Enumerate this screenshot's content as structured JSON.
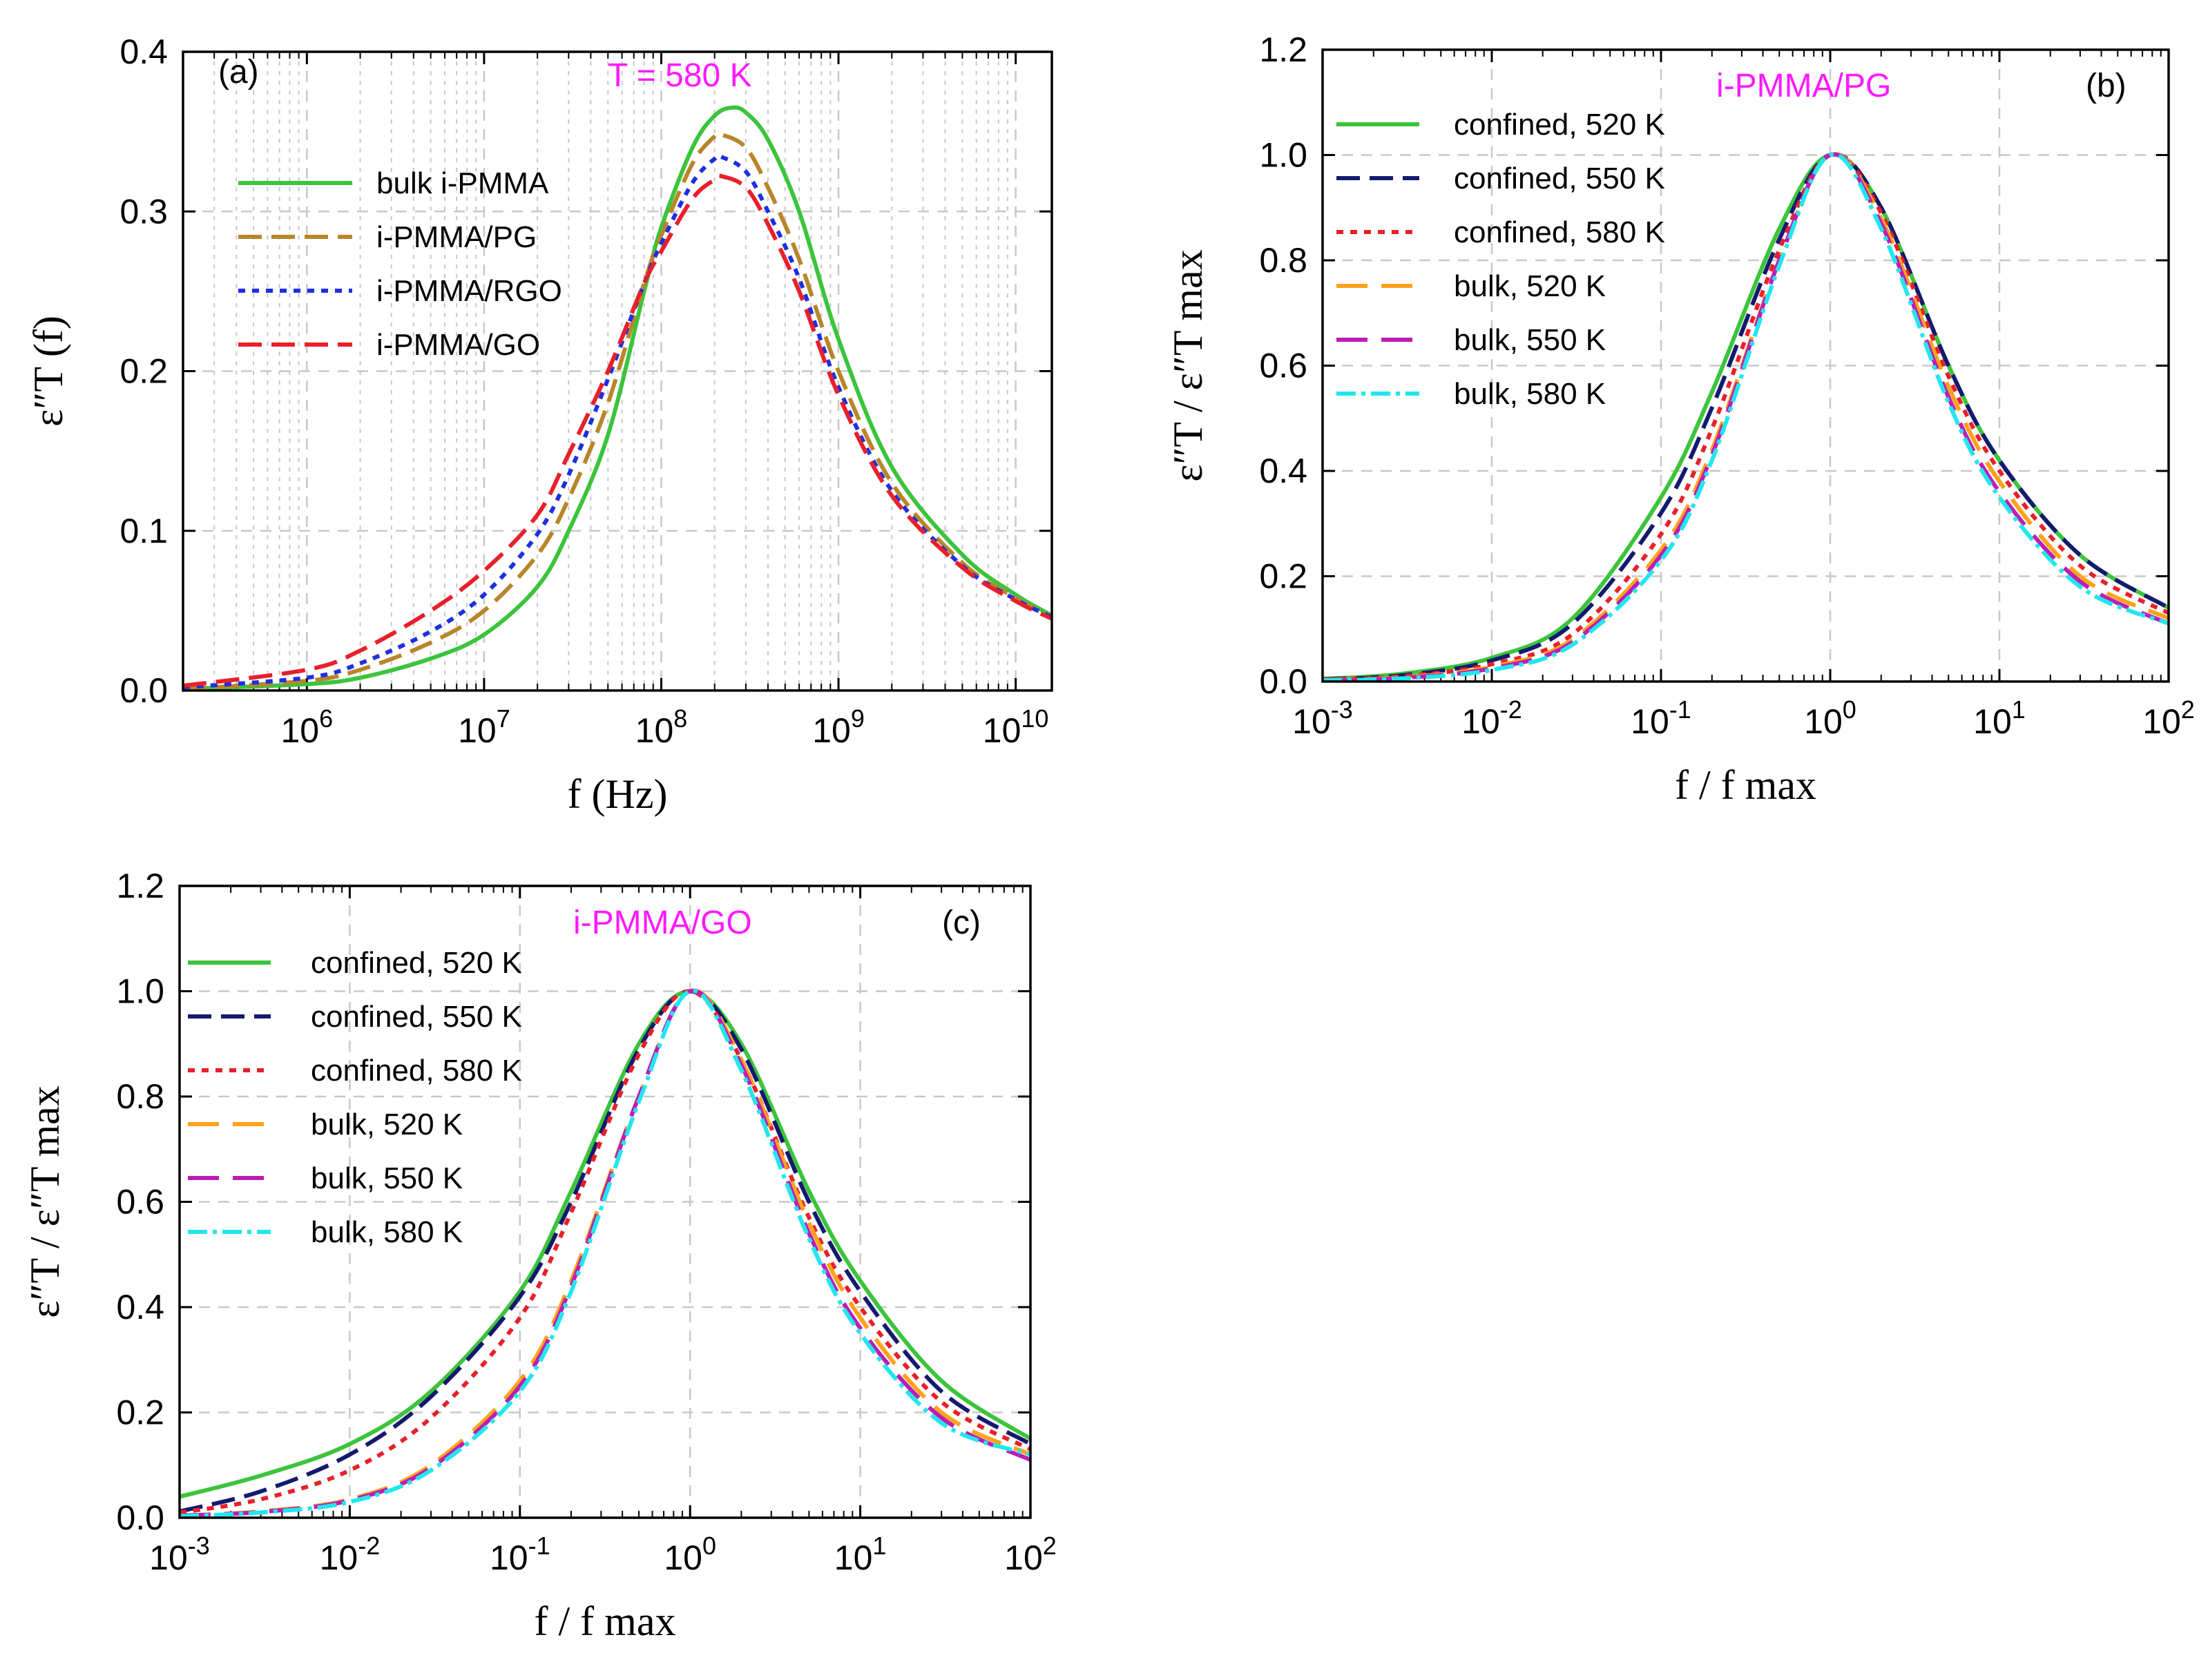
{
  "colors": {
    "green": "#3cc43c",
    "gold": "#b8862a",
    "blue": "#1f2fe0",
    "red": "#e8202a",
    "navy": "#141a6e",
    "orange": "#ffa21a",
    "purple": "#bb1eb4",
    "cyan": "#22e6ee",
    "magenta": "#ff1aff",
    "grid": "#c8c8c8"
  },
  "chart_data": [
    {
      "id": "a",
      "type": "line",
      "panel_label": "(a)",
      "annotation": "T = 580 K",
      "xlabel": "f (Hz)",
      "ylabel": "ε″T (f)",
      "xscale": "log",
      "xlim": [
        200000,
        16000000000
      ],
      "ylim": [
        0,
        0.4
      ],
      "xticks": [
        1000000,
        10000000,
        100000000,
        1000000000,
        10000000000
      ],
      "xtick_labels": [
        "10^6",
        "10^7",
        "10^8",
        "10^9",
        "10^10"
      ],
      "yticks": [
        0,
        0.1,
        0.2,
        0.3,
        0.4
      ],
      "ytick_labels": [
        "0.0",
        "0.1",
        "0.2",
        "0.3",
        "0.4"
      ],
      "grid": true,
      "legend_position": "upper-left",
      "series": [
        {
          "name": "bulk i-PMMA",
          "color": "green",
          "dash": "solid",
          "x": [
            200000,
            1000000,
            2000000,
            5000000,
            10000000,
            20000000,
            30000000,
            50000000,
            80000000,
            100000000,
            150000000,
            200000000,
            250000000,
            300000000,
            400000000,
            600000000,
            1000000000,
            2000000000,
            5000000000,
            10000000000,
            16000000000
          ],
          "y": [
            0.001,
            0.004,
            0.008,
            0.02,
            0.035,
            0.065,
            0.1,
            0.16,
            0.25,
            0.29,
            0.34,
            0.36,
            0.365,
            0.362,
            0.345,
            0.3,
            0.22,
            0.14,
            0.085,
            0.06,
            0.047
          ]
        },
        {
          "name": "i-PMMA/PG",
          "color": "gold",
          "dash": "dashed",
          "x": [
            200000,
            1000000,
            2000000,
            5000000,
            10000000,
            20000000,
            30000000,
            50000000,
            80000000,
            100000000,
            150000000,
            200000000,
            220000000,
            300000000,
            400000000,
            600000000,
            1000000000,
            2000000000,
            5000000000,
            10000000000,
            16000000000
          ],
          "y": [
            0.001,
            0.006,
            0.013,
            0.03,
            0.05,
            0.085,
            0.12,
            0.18,
            0.255,
            0.285,
            0.33,
            0.347,
            0.348,
            0.34,
            0.315,
            0.27,
            0.2,
            0.13,
            0.08,
            0.058,
            0.046
          ]
        },
        {
          "name": "i-PMMA/RGO",
          "color": "blue",
          "dash": "dotted",
          "x": [
            200000,
            1000000,
            2000000,
            5000000,
            10000000,
            20000000,
            30000000,
            50000000,
            80000000,
            100000000,
            150000000,
            200000000,
            220000000,
            300000000,
            400000000,
            600000000,
            1000000000,
            2000000000,
            5000000000,
            10000000000,
            16000000000
          ],
          "y": [
            0.002,
            0.008,
            0.017,
            0.037,
            0.06,
            0.098,
            0.135,
            0.195,
            0.255,
            0.28,
            0.318,
            0.333,
            0.334,
            0.325,
            0.3,
            0.258,
            0.19,
            0.125,
            0.078,
            0.057,
            0.046
          ]
        },
        {
          "name": "i-PMMA/GO",
          "color": "red",
          "dash": "dashed",
          "x": [
            200000,
            1000000,
            2000000,
            5000000,
            10000000,
            20000000,
            30000000,
            50000000,
            80000000,
            100000000,
            150000000,
            200000000,
            220000000,
            300000000,
            400000000,
            600000000,
            1000000000,
            2000000000,
            5000000000,
            10000000000,
            16000000000
          ],
          "y": [
            0.003,
            0.013,
            0.025,
            0.05,
            0.075,
            0.11,
            0.148,
            0.2,
            0.255,
            0.275,
            0.308,
            0.32,
            0.322,
            0.315,
            0.292,
            0.25,
            0.185,
            0.122,
            0.077,
            0.056,
            0.045
          ]
        }
      ]
    },
    {
      "id": "b",
      "type": "line",
      "panel_label": "(b)",
      "annotation": "i-PMMA/PG",
      "xlabel": "f / f max",
      "ylabel": "ε″T / ε″T max",
      "xscale": "log",
      "xlim": [
        0.001,
        100
      ],
      "ylim": [
        0,
        1.2
      ],
      "xticks": [
        0.001,
        0.01,
        0.1,
        1,
        10,
        100
      ],
      "xtick_labels": [
        "10^-3",
        "10^-2",
        "10^-1",
        "10^0",
        "10^1",
        "10^2"
      ],
      "yticks": [
        0,
        0.2,
        0.4,
        0.6,
        0.8,
        1.0,
        1.2
      ],
      "ytick_labels": [
        "0.0",
        "0.2",
        "0.4",
        "0.6",
        "0.8",
        "1.0",
        "1.2"
      ],
      "grid": true,
      "legend_position": "upper-left",
      "series": [
        {
          "name": "confined, 520 K",
          "color": "green",
          "dash": "solid",
          "x": [
            0.001,
            0.003,
            0.01,
            0.03,
            0.1,
            0.2,
            0.5,
            1,
            2,
            5,
            10,
            30,
            100
          ],
          "y": [
            0.005,
            0.015,
            0.045,
            0.12,
            0.35,
            0.55,
            0.86,
            1.0,
            0.9,
            0.6,
            0.42,
            0.24,
            0.14
          ]
        },
        {
          "name": "confined, 550 K",
          "color": "navy",
          "dash": "dashed",
          "x": [
            0.001,
            0.003,
            0.01,
            0.03,
            0.1,
            0.2,
            0.5,
            1,
            2,
            5,
            10,
            30,
            100
          ],
          "y": [
            0.004,
            0.012,
            0.04,
            0.11,
            0.32,
            0.52,
            0.84,
            1.0,
            0.9,
            0.6,
            0.42,
            0.24,
            0.14
          ]
        },
        {
          "name": "confined, 580 K",
          "color": "red",
          "dash": "dotted",
          "x": [
            0.001,
            0.003,
            0.01,
            0.03,
            0.1,
            0.2,
            0.5,
            1,
            2,
            5,
            10,
            30,
            100
          ],
          "y": [
            0.003,
            0.01,
            0.033,
            0.09,
            0.28,
            0.48,
            0.82,
            1.0,
            0.89,
            0.58,
            0.4,
            0.22,
            0.13
          ]
        },
        {
          "name": "bulk, 520 K",
          "color": "orange",
          "dash": "longdash",
          "x": [
            0.001,
            0.003,
            0.01,
            0.03,
            0.1,
            0.2,
            0.5,
            1,
            2,
            5,
            10,
            30,
            100
          ],
          "y": [
            0.003,
            0.008,
            0.028,
            0.08,
            0.25,
            0.44,
            0.8,
            1.0,
            0.88,
            0.56,
            0.38,
            0.2,
            0.12
          ]
        },
        {
          "name": "bulk, 550 K",
          "color": "purple",
          "dash": "longdash",
          "x": [
            0.001,
            0.003,
            0.01,
            0.03,
            0.1,
            0.2,
            0.5,
            1,
            2,
            5,
            10,
            30,
            100
          ],
          "y": [
            0.002,
            0.007,
            0.025,
            0.075,
            0.24,
            0.43,
            0.8,
            1.0,
            0.87,
            0.54,
            0.36,
            0.19,
            0.11
          ]
        },
        {
          "name": "bulk, 580 K",
          "color": "cyan",
          "dash": "dashdot",
          "x": [
            0.001,
            0.003,
            0.01,
            0.03,
            0.1,
            0.2,
            0.5,
            1,
            2,
            5,
            10,
            30,
            100
          ],
          "y": [
            0.002,
            0.006,
            0.022,
            0.07,
            0.23,
            0.42,
            0.79,
            1.0,
            0.86,
            0.53,
            0.35,
            0.18,
            0.11
          ]
        }
      ]
    },
    {
      "id": "c",
      "type": "line",
      "panel_label": "(c)",
      "annotation": "i-PMMA/GO",
      "xlabel": "f / f max",
      "ylabel": "ε″T / ε″T max",
      "xscale": "log",
      "xlim": [
        0.001,
        100
      ],
      "ylim": [
        0,
        1.2
      ],
      "xticks": [
        0.001,
        0.01,
        0.1,
        1,
        10,
        100
      ],
      "xtick_labels": [
        "10^-3",
        "10^-2",
        "10^-1",
        "10^0",
        "10^1",
        "10^2"
      ],
      "yticks": [
        0,
        0.2,
        0.4,
        0.6,
        0.8,
        1.0,
        1.2
      ],
      "ytick_labels": [
        "0.0",
        "0.2",
        "0.4",
        "0.6",
        "0.8",
        "1.0",
        "1.2"
      ],
      "grid": true,
      "legend_position": "upper-left",
      "series": [
        {
          "name": "confined, 520 K",
          "color": "green",
          "dash": "solid",
          "x": [
            0.001,
            0.003,
            0.01,
            0.03,
            0.1,
            0.2,
            0.5,
            1,
            2,
            5,
            10,
            30,
            100
          ],
          "y": [
            0.04,
            0.08,
            0.14,
            0.24,
            0.43,
            0.62,
            0.9,
            1.0,
            0.9,
            0.62,
            0.45,
            0.26,
            0.15
          ]
        },
        {
          "name": "confined, 550 K",
          "color": "navy",
          "dash": "dashed",
          "x": [
            0.001,
            0.003,
            0.01,
            0.03,
            0.1,
            0.2,
            0.5,
            1,
            2,
            5,
            10,
            30,
            100
          ],
          "y": [
            0.012,
            0.05,
            0.12,
            0.23,
            0.42,
            0.6,
            0.89,
            1.0,
            0.89,
            0.6,
            0.43,
            0.24,
            0.14
          ]
        },
        {
          "name": "confined, 580 K",
          "color": "red",
          "dash": "dotted",
          "x": [
            0.001,
            0.003,
            0.01,
            0.03,
            0.1,
            0.2,
            0.5,
            1,
            2,
            5,
            10,
            30,
            100
          ],
          "y": [
            0.01,
            0.035,
            0.09,
            0.19,
            0.38,
            0.58,
            0.88,
            1.0,
            0.87,
            0.57,
            0.4,
            0.22,
            0.13
          ]
        },
        {
          "name": "bulk, 520 K",
          "color": "orange",
          "dash": "longdash",
          "x": [
            0.001,
            0.003,
            0.01,
            0.03,
            0.1,
            0.2,
            0.5,
            1,
            2,
            5,
            10,
            30,
            100
          ],
          "y": [
            0.004,
            0.012,
            0.035,
            0.1,
            0.26,
            0.45,
            0.8,
            1.0,
            0.87,
            0.56,
            0.38,
            0.2,
            0.12
          ]
        },
        {
          "name": "bulk, 550 K",
          "color": "purple",
          "dash": "longdash",
          "x": [
            0.001,
            0.003,
            0.01,
            0.03,
            0.1,
            0.2,
            0.5,
            1,
            2,
            5,
            10,
            30,
            100
          ],
          "y": [
            0.004,
            0.011,
            0.033,
            0.095,
            0.25,
            0.44,
            0.8,
            1.0,
            0.86,
            0.54,
            0.36,
            0.19,
            0.11
          ]
        },
        {
          "name": "bulk, 580 K",
          "color": "cyan",
          "dash": "dashdot",
          "x": [
            0.001,
            0.003,
            0.01,
            0.03,
            0.1,
            0.2,
            0.5,
            1,
            2,
            5,
            10,
            30,
            100
          ],
          "y": [
            0.003,
            0.01,
            0.03,
            0.09,
            0.24,
            0.43,
            0.79,
            1.0,
            0.85,
            0.53,
            0.35,
            0.18,
            0.12
          ]
        }
      ]
    }
  ]
}
